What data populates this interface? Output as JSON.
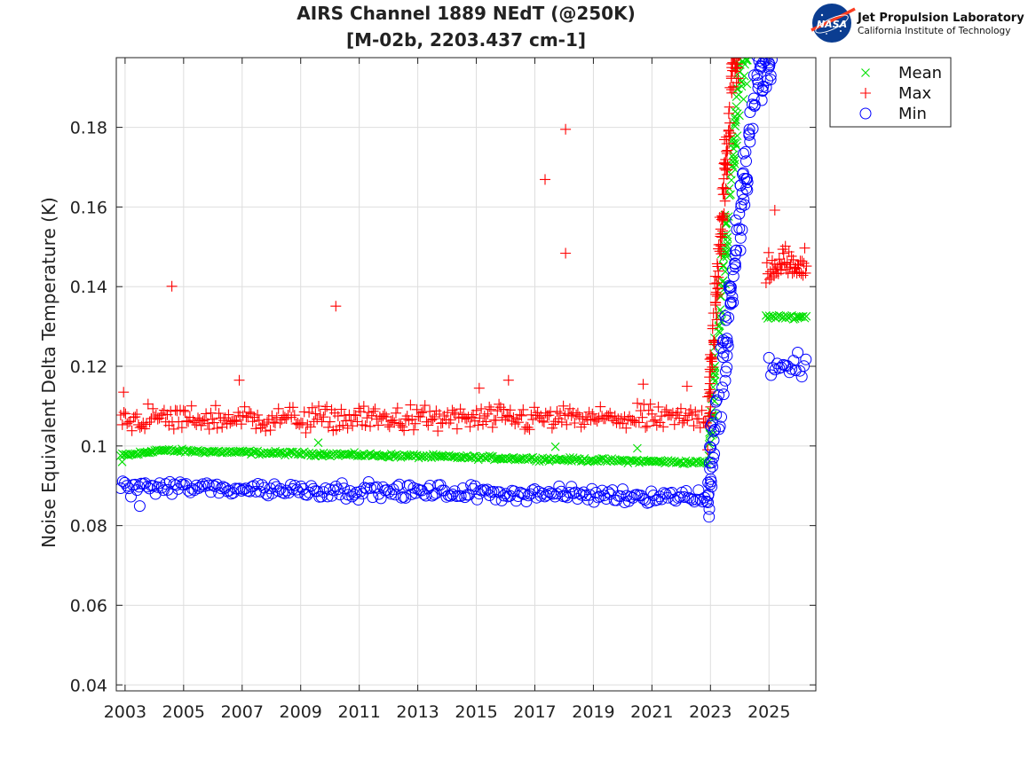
{
  "logo": {
    "org": "Jet Propulsion Laboratory",
    "sub": "California Institute of Technology",
    "badge": "NASA"
  },
  "chart_data": {
    "type": "scatter",
    "title": [
      "AIRS Channel 1889 NEdT (@250K)",
      "[M-02b, 2203.437 cm-1]"
    ],
    "xlabel": "",
    "ylabel": "Noise Equivalent Delta Temperature (K)",
    "xlim": [
      2002.7,
      2026.6
    ],
    "ylim": [
      0.0385,
      0.1975
    ],
    "xticks": [
      2003,
      2005,
      2007,
      2009,
      2011,
      2013,
      2015,
      2017,
      2019,
      2021,
      2023,
      2025
    ],
    "yticks": [
      0.04,
      0.06,
      0.08,
      0.1,
      0.12,
      0.14,
      0.16,
      0.18
    ],
    "ytick_labels": [
      "0.04",
      "0.06",
      "0.08",
      "0.1",
      "0.12",
      "0.14",
      "0.16",
      "0.18"
    ],
    "grid": true,
    "legend_position": "top-right, outside plot",
    "series": [
      {
        "name": "Mean",
        "marker": "x",
        "color": "#00e000",
        "segments": [
          {
            "x0": 2002.85,
            "x1": 2003.9,
            "y0": 0.0975,
            "y1": 0.0985,
            "jitter": 0.0005
          },
          {
            "x0": 2003.9,
            "x1": 2022.9,
            "y0": 0.0989,
            "y1": 0.0958,
            "jitter": 0.0004
          },
          {
            "x0": 2024.9,
            "x1": 2026.3,
            "y0": 0.1324,
            "y1": 0.1324,
            "jitter": 0.0004
          }
        ],
        "ramp": {
          "x0": 2022.9,
          "x1": 2024.3,
          "y0": 0.096,
          "y1": 0.197
        },
        "outliers": [
          {
            "x": 2002.9,
            "y": 0.096
          },
          {
            "x": 2009.6,
            "y": 0.1008
          },
          {
            "x": 2017.7,
            "y": 0.0998
          },
          {
            "x": 2020.5,
            "y": 0.0994
          }
        ]
      },
      {
        "name": "Max",
        "marker": "+",
        "color": "#ff0000",
        "segments": [
          {
            "x0": 2002.85,
            "x1": 2022.9,
            "y0": 0.1068,
            "y1": 0.1068,
            "jitter": 0.0028
          }
        ],
        "sparse": {
          "x0": 2024.9,
          "x1": 2026.3,
          "y0": 0.1455,
          "y1": 0.1455,
          "jitter": 0.004
        },
        "ramp": {
          "x0": 2022.9,
          "x1": 2024.0,
          "y0": 0.106,
          "y1": 0.197
        },
        "outliers": [
          {
            "x": 2002.95,
            "y": 0.1135
          },
          {
            "x": 2004.6,
            "y": 0.1401
          },
          {
            "x": 2006.9,
            "y": 0.1165
          },
          {
            "x": 2010.2,
            "y": 0.1351
          },
          {
            "x": 2015.1,
            "y": 0.1145
          },
          {
            "x": 2016.1,
            "y": 0.1165
          },
          {
            "x": 2017.35,
            "y": 0.1669
          },
          {
            "x": 2018.05,
            "y": 0.1795
          },
          {
            "x": 2018.05,
            "y": 0.1484
          },
          {
            "x": 2020.7,
            "y": 0.1155
          },
          {
            "x": 2022.2,
            "y": 0.115
          },
          {
            "x": 2025.2,
            "y": 0.1592
          }
        ]
      },
      {
        "name": "Min",
        "marker": "o",
        "color": "#0000ff",
        "segments": [
          {
            "x0": 2002.85,
            "x1": 2022.9,
            "y0": 0.0898,
            "y1": 0.0872,
            "jitter": 0.0016
          },
          {
            "x0": 2025.0,
            "x1": 2026.3,
            "y0": 0.12,
            "y1": 0.12,
            "jitter": 0.0028
          }
        ],
        "ramp": {
          "x0": 2022.9,
          "x1": 2025.1,
          "y0": 0.087,
          "y1": 0.197
        },
        "outliers": [
          {
            "x": 2022.95,
            "y": 0.0822
          },
          {
            "x": 2003.5,
            "y": 0.0849
          }
        ]
      }
    ]
  }
}
